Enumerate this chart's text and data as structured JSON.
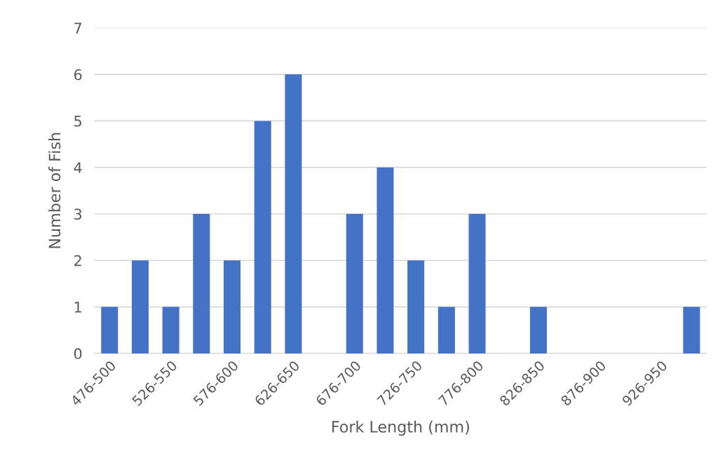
{
  "chart_data": {
    "type": "bar",
    "xlabel": "Fork Length (mm)",
    "ylabel": "Number of Fish",
    "categories": [
      "476-500",
      null,
      "526-550",
      null,
      "576-600",
      null,
      "626-650",
      null,
      "676-700",
      null,
      "726-750",
      null,
      "776-800",
      null,
      "826-850",
      null,
      "876-900",
      null,
      "926-950",
      null
    ],
    "values": [
      1,
      2,
      1,
      3,
      2,
      5,
      6,
      0,
      3,
      4,
      2,
      1,
      3,
      0,
      1,
      0,
      0,
      0,
      0,
      1
    ],
    "color": "#4472c4",
    "ylim": [
      0,
      7
    ],
    "yticks": [
      0,
      1,
      2,
      3,
      4,
      5,
      6,
      7
    ],
    "grid": "y"
  }
}
